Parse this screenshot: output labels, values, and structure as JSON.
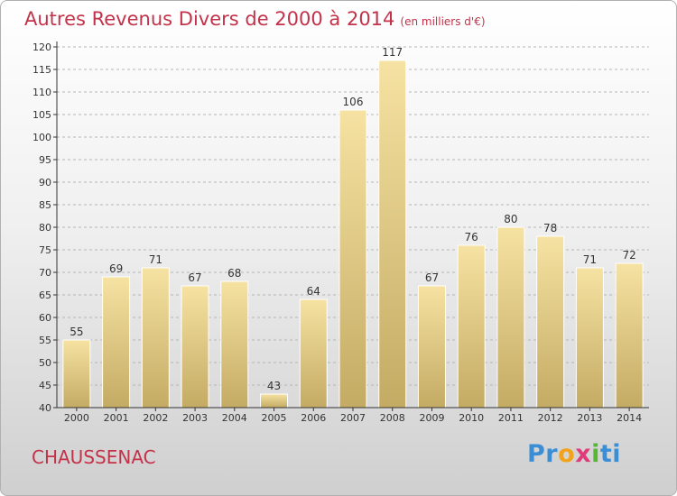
{
  "title": {
    "main": "Autres Revenus Divers de 2000 à 2014",
    "unit": "(en milliers d'€)"
  },
  "place_name": "CHAUSSENAC",
  "logo": {
    "letters": [
      "P",
      "r",
      "o",
      "x",
      "i",
      "t",
      "i"
    ],
    "colors": [
      "#3a8ed6",
      "#3a8ed6",
      "#f3a21c",
      "#e03c7a",
      "#55b832",
      "#3a8ed6",
      "#3a8ed6"
    ]
  },
  "colors": {
    "bar_light": "#f6e2a2",
    "bar_dark": "#c4ab64",
    "title_red": "#c4324a",
    "grid": "#b5b5b5"
  },
  "chart_data": {
    "type": "bar",
    "categories": [
      "2000",
      "2001",
      "2002",
      "2003",
      "2004",
      "2005",
      "2006",
      "2007",
      "2008",
      "2009",
      "2010",
      "2011",
      "2012",
      "2013",
      "2014"
    ],
    "values": [
      55,
      69,
      71,
      67,
      68,
      43,
      64,
      106,
      117,
      67,
      76,
      80,
      78,
      71,
      72
    ],
    "ylim": [
      40,
      120
    ],
    "yticks": [
      40,
      45,
      50,
      55,
      60,
      65,
      70,
      75,
      80,
      85,
      90,
      95,
      100,
      105,
      110,
      115,
      120
    ],
    "grid": "horizontal, dashed",
    "title": "Autres Revenus Divers de 2000 à 2014",
    "xlabel": "",
    "ylabel": ""
  }
}
